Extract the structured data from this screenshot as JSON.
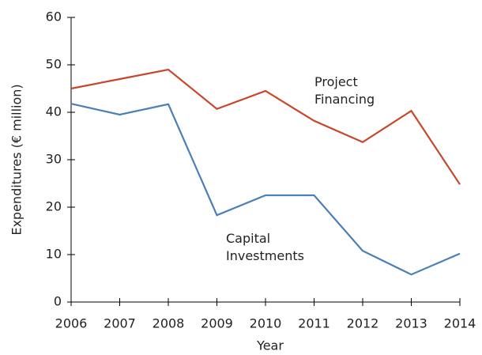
{
  "chart_data": {
    "type": "line",
    "xlabel": "Year",
    "ylabel": "Expenditures (€ million)",
    "x": [
      2006,
      2007,
      2008,
      2009,
      2010,
      2011,
      2012,
      2013,
      2014
    ],
    "series": [
      {
        "name": "Project Financing",
        "color": "#c8462a",
        "values": [
          45,
          47,
          49,
          40.7,
          44.5,
          38.2,
          33.7,
          40.3,
          24.8
        ]
      },
      {
        "name": "Capital Investments",
        "color": "#4a7fb8",
        "values": [
          41.8,
          39.5,
          41.7,
          18.3,
          22.5,
          22.5,
          10.8,
          5.8,
          10.2
        ]
      }
    ],
    "xlim": [
      2006,
      2014
    ],
    "xticks": [
      2006,
      2007,
      2008,
      2009,
      2010,
      2011,
      2012,
      2013,
      2014
    ],
    "ylim": [
      0,
      60
    ],
    "yticks": [
      0,
      10,
      20,
      30,
      40,
      50,
      60
    ]
  }
}
